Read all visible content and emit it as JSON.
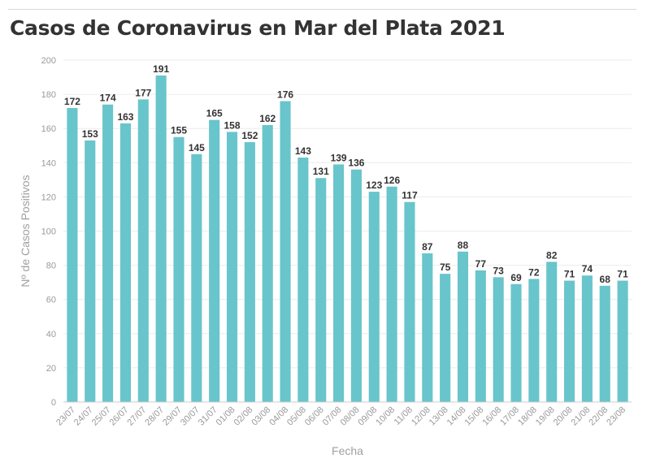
{
  "title": "Casos de Coronavirus en Mar del Plata 2021",
  "colors": {
    "bar": "#68c5cb",
    "grid": "#ececec",
    "axis": "#cccccc"
  },
  "chart_data": {
    "type": "bar",
    "title": "Casos de Coronavirus en Mar del Plata 2021",
    "xlabel": "Fecha",
    "ylabel": "Nº de Casos Positivos",
    "ylim": [
      0,
      200
    ],
    "yticks": [
      0,
      20,
      40,
      60,
      80,
      100,
      120,
      140,
      160,
      180,
      200
    ],
    "grid": true,
    "categories": [
      "23/07",
      "24/07",
      "25/07",
      "26/07",
      "27/07",
      "28/07",
      "29/07",
      "30/07",
      "31/07",
      "01/08",
      "02/08",
      "03/08",
      "04/08",
      "05/08",
      "06/08",
      "07/08",
      "08/08",
      "09/08",
      "10/08",
      "11/08",
      "12/08",
      "13/08",
      "14/08",
      "15/08",
      "16/08",
      "17/08",
      "18/08",
      "19/08",
      "20/08",
      "21/08",
      "22/08",
      "23/08"
    ],
    "values": [
      172,
      153,
      174,
      163,
      177,
      191,
      155,
      145,
      165,
      158,
      152,
      162,
      176,
      143,
      131,
      139,
      136,
      123,
      126,
      117,
      87,
      75,
      88,
      77,
      73,
      69,
      72,
      82,
      71,
      74,
      68,
      71
    ]
  }
}
